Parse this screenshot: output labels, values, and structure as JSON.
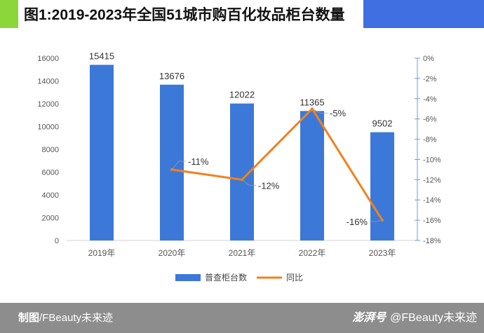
{
  "header": {
    "title": "图1:2019-2023年全国51城市购百化妆品柜台数量"
  },
  "footer": {
    "credit_prefix": "制图",
    "credit_suffix": "/FBeauty未来迹",
    "platform": "澎湃号",
    "account": "@FBeauty未来迹"
  },
  "colors": {
    "bar": "#3c78d8",
    "line": "#f0821e",
    "right_axis": "#6aa0d8",
    "accent_green": "#8bd63a",
    "accent_blue": "#3f6fe0"
  },
  "chart_data": {
    "type": "bar",
    "title": "图1:2019-2023年全国51城市购百化妆品柜台数量",
    "categories": [
      "2019年",
      "2020年",
      "2021年",
      "2022年",
      "2023年"
    ],
    "series": [
      {
        "name": "普查柜台数",
        "type": "bar",
        "axis": "left",
        "values": [
          15415,
          13676,
          12022,
          11365,
          9502
        ],
        "labels": [
          "15415",
          "13676",
          "12022",
          "11365",
          "9502"
        ]
      },
      {
        "name": "同比",
        "type": "line",
        "axis": "right",
        "values": [
          null,
          -11,
          -12,
          -5,
          -16
        ],
        "labels": [
          null,
          "-11%",
          "-12%",
          "-5%",
          "-16%"
        ]
      }
    ],
    "ylim": [
      0,
      16000
    ],
    "yticks": [
      0,
      2000,
      4000,
      6000,
      8000,
      10000,
      12000,
      14000,
      16000
    ],
    "ytick_labels": [
      "0",
      "2000",
      "4000",
      "6000",
      "8000",
      "10000",
      "12000",
      "14000",
      "16000"
    ],
    "y2lim": [
      -18,
      0
    ],
    "y2ticks": [
      0,
      -2,
      -4,
      -6,
      -8,
      -10,
      -12,
      -14,
      -16,
      -18
    ],
    "y2tick_labels": [
      "0%",
      "-2%",
      "-4%",
      "-6%",
      "-8%",
      "-10%",
      "-12%",
      "-14%",
      "-16%",
      "-18%"
    ],
    "legend": "bottom",
    "grid": false
  }
}
